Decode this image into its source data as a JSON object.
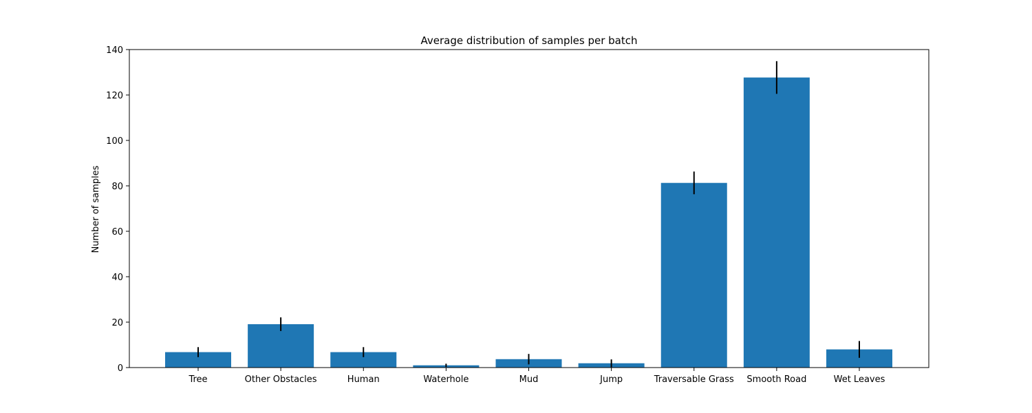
{
  "chart_data": {
    "type": "bar",
    "title": "Average distribution of samples per batch",
    "xlabel": "",
    "ylabel": "Number of samples",
    "categories": [
      "Tree",
      "Other Obstacles",
      "Human",
      "Waterhole",
      "Mud",
      "Jump",
      "Traversable Grass",
      "Smooth Road",
      "Wet Leaves"
    ],
    "values": [
      6.8,
      19.1,
      6.8,
      1.0,
      3.7,
      1.9,
      81.3,
      127.7,
      8.0
    ],
    "errors": [
      2.2,
      3.0,
      2.2,
      0.7,
      2.3,
      1.7,
      5.0,
      7.2,
      3.7
    ],
    "ylim": [
      0,
      140
    ],
    "yticks": [
      0,
      20,
      40,
      60,
      80,
      100,
      120,
      140
    ],
    "grid": false,
    "bar_color": "#1f77b4",
    "error_color": "#000000"
  }
}
